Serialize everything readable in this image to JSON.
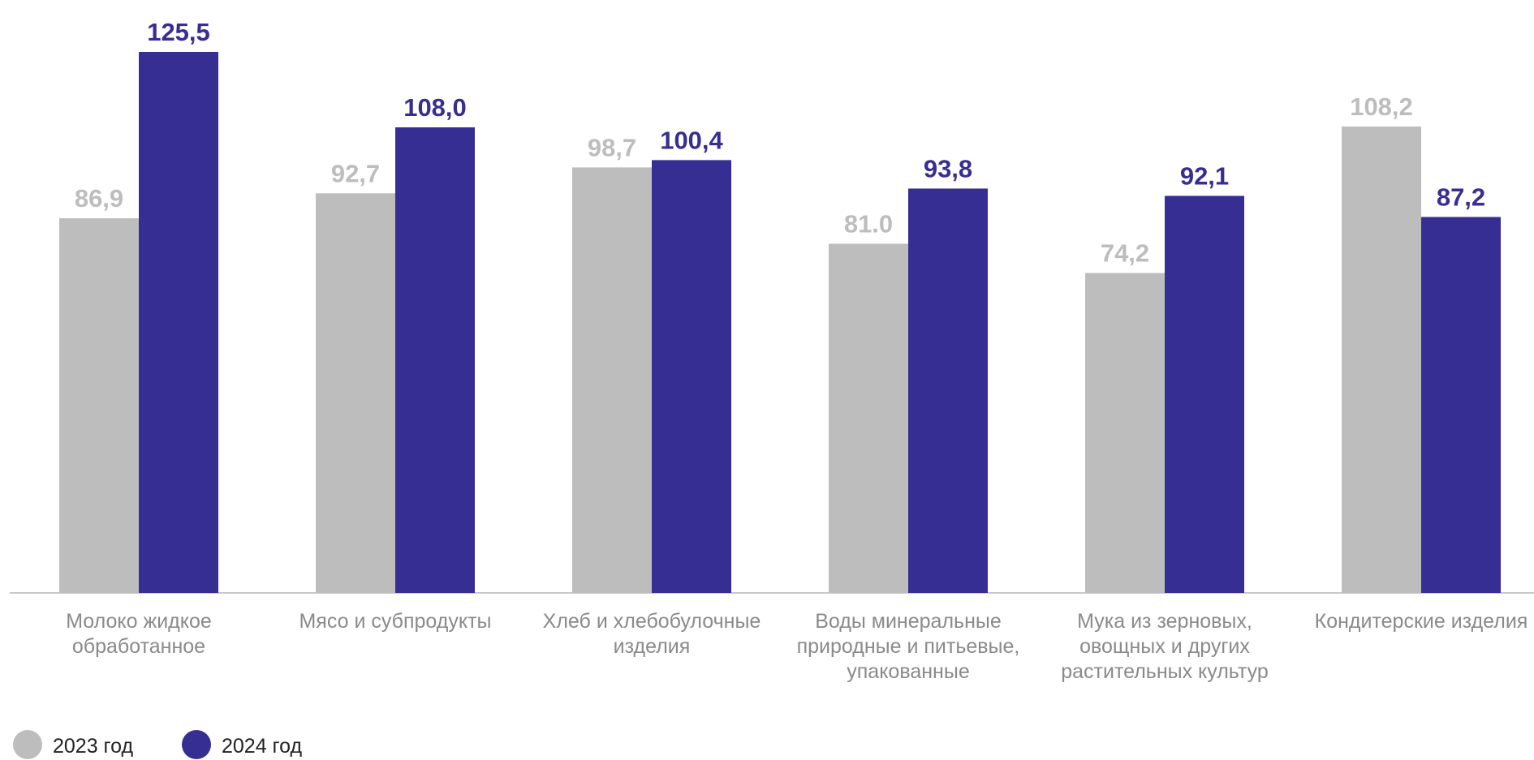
{
  "chart_data": {
    "type": "bar",
    "categories": [
      [
        "Молоко жидкое",
        "обработанное"
      ],
      [
        "Мясо и субпродукты"
      ],
      [
        "Хлеб и хлебобулочные",
        "изделия"
      ],
      [
        "Воды минеральные",
        "природные и питьевые,",
        "упакованные"
      ],
      [
        "Мука из зерновых,",
        "овощных и других",
        "растительных культур"
      ],
      [
        "Кондитерские изделия"
      ]
    ],
    "series": [
      {
        "name": "2023 год",
        "color": "#bdbdbd",
        "values": [
          86.9,
          92.7,
          98.7,
          81.0,
          74.2,
          108.2
        ],
        "labels": [
          "86,9",
          "92,7",
          "98,7",
          "81.0",
          "74,2",
          "108,2"
        ]
      },
      {
        "name": "2024 год",
        "color": "#372e93",
        "values": [
          125.5,
          108.0,
          100.4,
          93.8,
          92.1,
          87.2
        ],
        "labels": [
          "125,5",
          "108,0",
          "100,4",
          "93,8",
          "92,1",
          "87,2"
        ]
      }
    ],
    "ylim": [
      0,
      127
    ],
    "grid": false,
    "legend_position": "bottom-left"
  }
}
